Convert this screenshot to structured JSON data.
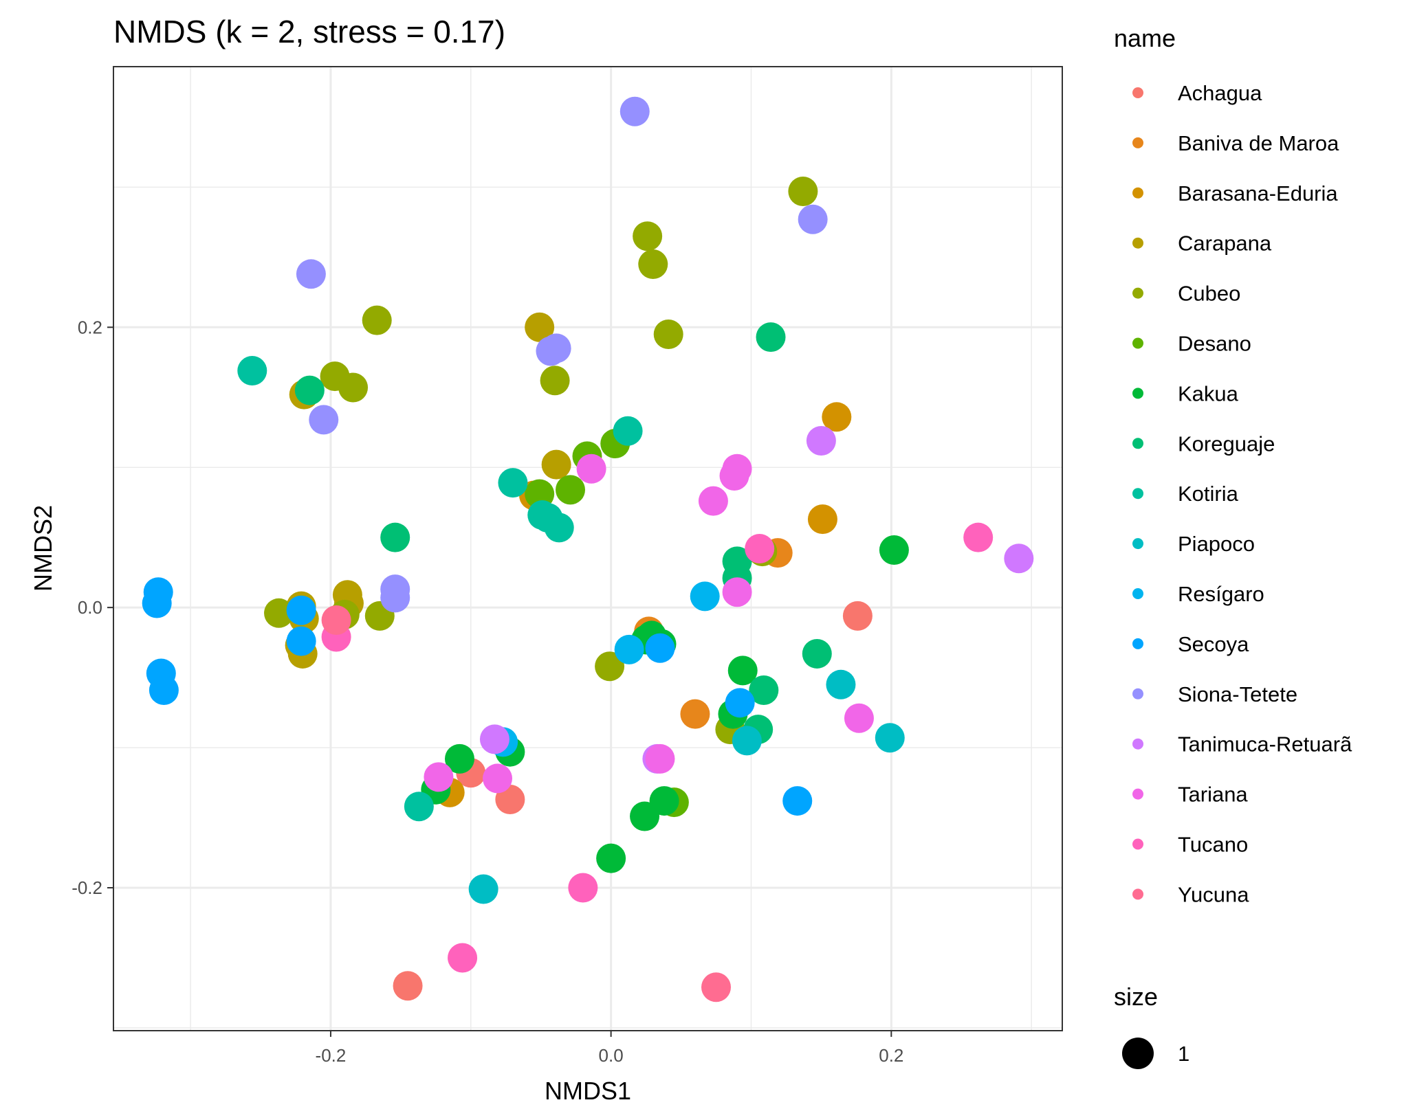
{
  "chart_data": {
    "type": "scatter",
    "title": "NMDS (k = 2, stress = 0.17)",
    "xlabel": "NMDS1",
    "ylabel": "NMDS2",
    "xlim": [
      -0.355,
      0.322
    ],
    "ylim": [
      -0.302,
      0.386
    ],
    "x_ticks": [
      -0.2,
      0.0,
      0.2
    ],
    "y_ticks": [
      -0.2,
      0.0,
      0.2
    ],
    "x_tick_labels": [
      "-0.2",
      "0.0",
      "0.2"
    ],
    "y_tick_labels": [
      "-0.2",
      "0.0",
      "0.2"
    ],
    "grid": true,
    "legend": {
      "position": "right",
      "color_title": "name",
      "size_title": "size",
      "size_label": "1"
    },
    "series": [
      {
        "name": "Achagua",
        "color": "#F8766D",
        "points": [
          [
            0.176,
            -0.006
          ],
          [
            -0.145,
            -0.27
          ],
          [
            -0.072,
            -0.137
          ],
          [
            -0.1,
            -0.118
          ]
        ]
      },
      {
        "name": "Baniva de Maroa",
        "color": "#E7861B",
        "points": [
          [
            0.06,
            -0.076
          ],
          [
            0.119,
            0.039
          ],
          [
            0.027,
            -0.017
          ]
        ]
      },
      {
        "name": "Barasana-Eduria",
        "color": "#D39200",
        "points": [
          [
            0.161,
            0.136
          ],
          [
            0.151,
            0.063
          ],
          [
            -0.115,
            -0.132
          ],
          [
            -0.055,
            0.08
          ]
        ]
      },
      {
        "name": "Carapana",
        "color": "#B79F00",
        "points": [
          [
            -0.051,
            0.2
          ],
          [
            -0.039,
            0.102
          ],
          [
            -0.22,
            -0.033
          ],
          [
            -0.222,
            -0.027
          ],
          [
            -0.188,
            0.009
          ],
          [
            -0.187,
            0.003
          ],
          [
            -0.221,
            0.001
          ],
          [
            -0.219,
            -0.008
          ],
          [
            -0.219,
            0.152
          ]
        ]
      },
      {
        "name": "Cubeo",
        "color": "#93AA00",
        "points": [
          [
            0.137,
            0.297
          ],
          [
            0.026,
            0.265
          ],
          [
            0.03,
            0.245
          ],
          [
            0.041,
            0.195
          ],
          [
            -0.167,
            0.205
          ],
          [
            -0.197,
            0.165
          ],
          [
            -0.184,
            0.157
          ],
          [
            -0.04,
            0.162
          ],
          [
            -0.237,
            -0.004
          ],
          [
            -0.19,
            -0.005
          ],
          [
            -0.165,
            -0.006
          ],
          [
            0.108,
            0.04
          ],
          [
            -0.001,
            -0.042
          ],
          [
            0.085,
            -0.087
          ]
        ]
      },
      {
        "name": "Desano",
        "color": "#5EB300",
        "points": [
          [
            -0.017,
            0.108
          ],
          [
            0.003,
            0.117
          ],
          [
            -0.029,
            0.084
          ],
          [
            -0.051,
            0.081
          ],
          [
            0.045,
            -0.139
          ]
        ]
      },
      {
        "name": "Kakua",
        "color": "#00BA38",
        "points": [
          [
            0.202,
            0.041
          ],
          [
            0.094,
            -0.045
          ],
          [
            0.087,
            -0.076
          ],
          [
            0.029,
            -0.02
          ],
          [
            0.036,
            -0.026
          ],
          [
            0.025,
            -0.023
          ],
          [
            -0.108,
            -0.108
          ],
          [
            -0.072,
            -0.103
          ],
          [
            -0.125,
            -0.13
          ],
          [
            0.024,
            -0.149
          ],
          [
            0.038,
            -0.138
          ],
          [
            0.0,
            -0.179
          ]
        ]
      },
      {
        "name": "Koreguaje",
        "color": "#00BF74",
        "points": [
          [
            0.114,
            0.193
          ],
          [
            -0.154,
            0.05
          ],
          [
            -0.215,
            0.155
          ],
          [
            0.09,
            0.033
          ],
          [
            0.09,
            0.021
          ],
          [
            0.147,
            -0.033
          ],
          [
            0.109,
            -0.059
          ],
          [
            0.105,
            -0.087
          ]
        ]
      },
      {
        "name": "Kotiria",
        "color": "#00C19F",
        "points": [
          [
            -0.256,
            0.169
          ],
          [
            0.012,
            0.126
          ],
          [
            -0.07,
            0.089
          ],
          [
            -0.049,
            0.066
          ],
          [
            -0.045,
            0.064
          ],
          [
            -0.037,
            0.057
          ],
          [
            -0.137,
            -0.142
          ]
        ]
      },
      {
        "name": "Piapoco",
        "color": "#00BDC4",
        "points": [
          [
            0.164,
            -0.055
          ],
          [
            0.199,
            -0.093
          ],
          [
            0.097,
            -0.095
          ],
          [
            -0.091,
            -0.201
          ]
        ]
      },
      {
        "name": "Resígaro",
        "color": "#00B4EF",
        "points": [
          [
            0.067,
            0.008
          ],
          [
            0.013,
            -0.03
          ],
          [
            -0.077,
            -0.096
          ]
        ]
      },
      {
        "name": "Secoya",
        "color": "#00A5FF",
        "points": [
          [
            -0.323,
            0.011
          ],
          [
            -0.324,
            0.003
          ],
          [
            -0.221,
            -0.002
          ],
          [
            -0.221,
            -0.024
          ],
          [
            -0.321,
            -0.047
          ],
          [
            -0.319,
            -0.059
          ],
          [
            0.133,
            -0.138
          ],
          [
            0.035,
            -0.029
          ],
          [
            0.092,
            -0.068
          ]
        ]
      },
      {
        "name": "Siona-Tetete",
        "color": "#9590FF",
        "points": [
          [
            0.017,
            0.354
          ],
          [
            0.144,
            0.277
          ],
          [
            -0.214,
            0.238
          ],
          [
            -0.039,
            0.185
          ],
          [
            -0.043,
            0.183
          ],
          [
            -0.205,
            0.134
          ],
          [
            -0.154,
            0.013
          ],
          [
            -0.154,
            0.007
          ]
        ]
      },
      {
        "name": "Tanimuca-Retuarã",
        "color": "#D078FF",
        "points": [
          [
            0.291,
            0.035
          ],
          [
            0.15,
            0.119
          ],
          [
            -0.083,
            -0.094
          ],
          [
            0.033,
            -0.108
          ]
        ]
      },
      {
        "name": "Tariana",
        "color": "#F166E8",
        "points": [
          [
            -0.014,
            0.099
          ],
          [
            0.09,
            0.099
          ],
          [
            0.073,
            0.076
          ],
          [
            0.088,
            0.094
          ],
          [
            0.09,
            0.011
          ],
          [
            0.177,
            -0.079
          ],
          [
            -0.081,
            -0.122
          ],
          [
            -0.123,
            -0.121
          ],
          [
            0.035,
            -0.108
          ]
        ]
      },
      {
        "name": "Tucano",
        "color": "#FF62BC",
        "points": [
          [
            0.262,
            0.05
          ],
          [
            0.106,
            0.042
          ],
          [
            -0.196,
            -0.021
          ],
          [
            -0.106,
            -0.25
          ],
          [
            -0.02,
            -0.2
          ]
        ]
      },
      {
        "name": "Yucuna",
        "color": "#FF6C91",
        "points": [
          [
            0.075,
            -0.271
          ],
          [
            -0.196,
            -0.009
          ]
        ]
      }
    ]
  }
}
